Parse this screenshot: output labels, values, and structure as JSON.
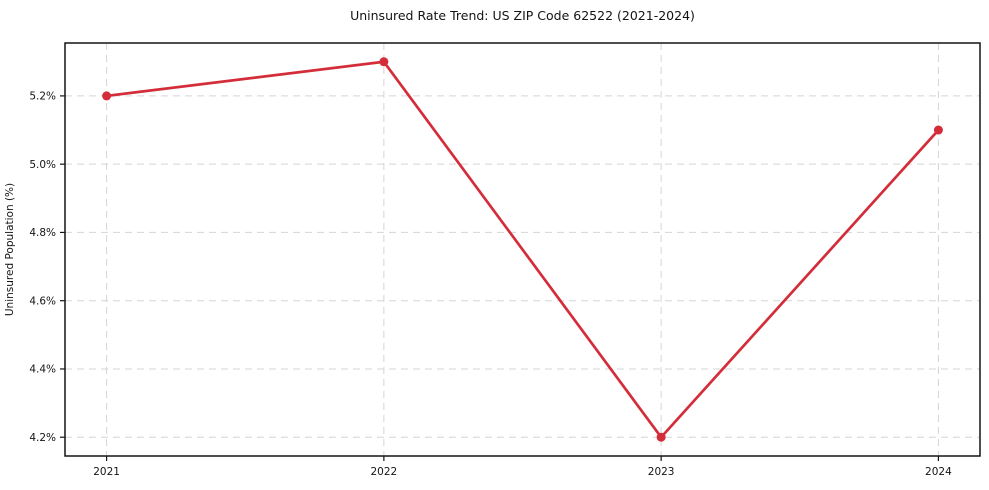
{
  "chart_data": {
    "type": "line",
    "title": "Uninsured Rate Trend: US ZIP Code 62522 (2021-2024)",
    "xlabel": "",
    "ylabel": "Uninsured Population (%)",
    "x": [
      2021,
      2022,
      2023,
      2024
    ],
    "values": [
      5.2,
      5.3,
      4.2,
      5.1
    ],
    "xlim": [
      2020.85,
      2024.15
    ],
    "ylim": [
      4.145,
      5.355
    ],
    "xticks": {
      "values": [
        2021,
        2022,
        2023,
        2024
      ],
      "labels": [
        "2021",
        "2022",
        "2023",
        "2024"
      ]
    },
    "yticks": {
      "values": [
        4.2,
        4.4,
        4.6,
        4.8,
        5.0,
        5.2
      ],
      "labels": [
        "4.2%",
        "4.4%",
        "4.6%",
        "4.8%",
        "5.0%",
        "5.2%"
      ]
    },
    "grid": true,
    "legend": false,
    "line_color": "#d32d3a",
    "marker": "circle",
    "background": "#ffffff"
  }
}
